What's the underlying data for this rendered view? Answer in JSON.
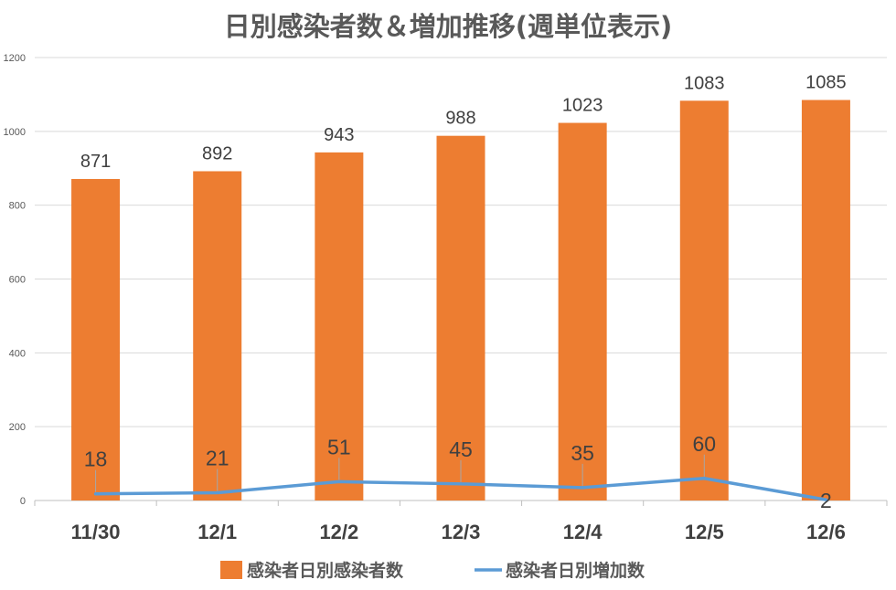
{
  "chart_data": {
    "type": "bar",
    "title": "日別感染者数＆増加推移(週単位表示)",
    "categories": [
      "11/30",
      "12/1",
      "12/2",
      "12/3",
      "12/4",
      "12/5",
      "12/6"
    ],
    "series": [
      {
        "name": "感染者日別感染者数",
        "type": "bar",
        "color": "#ED7D31",
        "values": [
          871,
          892,
          943,
          988,
          1023,
          1083,
          1085
        ]
      },
      {
        "name": "感染者日別増加数",
        "type": "line",
        "color": "#5B9BD5",
        "values": [
          18,
          21,
          51,
          45,
          35,
          60,
          2
        ]
      }
    ],
    "ylim": [
      0,
      1200
    ],
    "yticks": [
      0,
      200,
      400,
      600,
      800,
      1000,
      1200
    ],
    "grid": true,
    "legend_position": "bottom",
    "data_labels": true
  }
}
